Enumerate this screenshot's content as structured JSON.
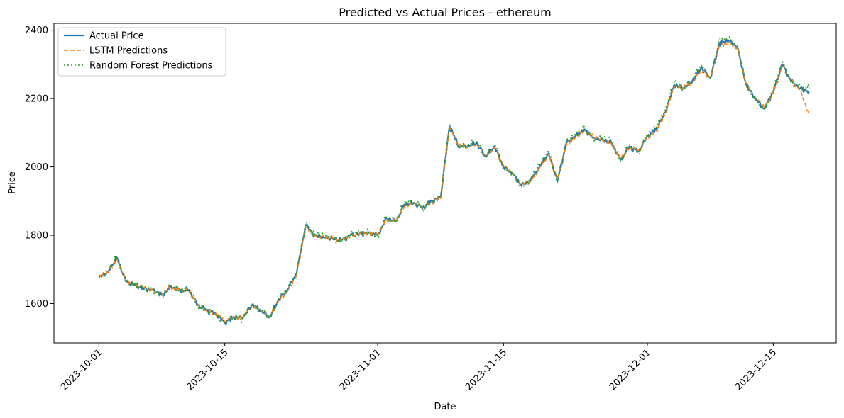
{
  "chart_data": {
    "type": "line",
    "title": "Predicted vs Actual Prices - ethereum",
    "xlabel": "Date",
    "ylabel": "Price",
    "xlim": [
      "2023-09-26",
      "2023-12-22"
    ],
    "ylim": [
      1485,
      2420
    ],
    "x_ticks": [
      "2023-10-01",
      "2023-10-15",
      "2023-11-01",
      "2023-11-15",
      "2023-12-01",
      "2023-12-15"
    ],
    "y_ticks": [
      1600,
      1800,
      2000,
      2200,
      2400
    ],
    "grid": false,
    "legend": "top-left",
    "x": [
      "2023-10-01",
      "2023-10-02",
      "2023-10-03",
      "2023-10-04",
      "2023-10-05",
      "2023-10-06",
      "2023-10-07",
      "2023-10-08",
      "2023-10-09",
      "2023-10-10",
      "2023-10-11",
      "2023-10-12",
      "2023-10-13",
      "2023-10-14",
      "2023-10-15",
      "2023-10-16",
      "2023-10-17",
      "2023-10-18",
      "2023-10-19",
      "2023-10-20",
      "2023-10-21",
      "2023-10-22",
      "2023-10-23",
      "2023-10-24",
      "2023-10-25",
      "2023-10-26",
      "2023-10-27",
      "2023-10-28",
      "2023-10-29",
      "2023-10-30",
      "2023-10-31",
      "2023-11-01",
      "2023-11-02",
      "2023-11-03",
      "2023-11-04",
      "2023-11-05",
      "2023-11-06",
      "2023-11-07",
      "2023-11-08",
      "2023-11-09",
      "2023-11-10",
      "2023-11-11",
      "2023-11-12",
      "2023-11-13",
      "2023-11-14",
      "2023-11-15",
      "2023-11-16",
      "2023-11-17",
      "2023-11-18",
      "2023-11-19",
      "2023-11-20",
      "2023-11-21",
      "2023-11-22",
      "2023-11-23",
      "2023-11-24",
      "2023-11-25",
      "2023-11-26",
      "2023-11-27",
      "2023-11-28",
      "2023-11-29",
      "2023-11-30",
      "2023-12-01",
      "2023-12-02",
      "2023-12-03",
      "2023-12-04",
      "2023-12-05",
      "2023-12-06",
      "2023-12-07",
      "2023-12-08",
      "2023-12-09",
      "2023-12-10",
      "2023-12-11",
      "2023-12-12",
      "2023-12-13",
      "2023-12-14",
      "2023-12-15",
      "2023-12-16",
      "2023-12-17",
      "2023-12-18",
      "2023-12-19"
    ],
    "series": [
      {
        "name": "Actual Price",
        "color": "#1f77b4",
        "style": "solid",
        "values": [
          1678,
          1692,
          1735,
          1665,
          1655,
          1645,
          1640,
          1625,
          1650,
          1638,
          1640,
          1595,
          1580,
          1570,
          1545,
          1560,
          1558,
          1595,
          1580,
          1560,
          1612,
          1640,
          1690,
          1830,
          1800,
          1795,
          1790,
          1785,
          1800,
          1805,
          1808,
          1800,
          1850,
          1840,
          1890,
          1895,
          1880,
          1900,
          1910,
          2120,
          2060,
          2060,
          2070,
          2030,
          2060,
          2000,
          1980,
          1945,
          1960,
          2000,
          2040,
          1960,
          2070,
          2090,
          2110,
          2085,
          2080,
          2070,
          2020,
          2060,
          2045,
          2090,
          2110,
          2160,
          2240,
          2230,
          2250,
          2290,
          2260,
          2360,
          2370,
          2350,
          2240,
          2200,
          2170,
          2220,
          2300,
          2250,
          2230,
          2220
        ]
      },
      {
        "name": "LSTM Predictions",
        "color": "#ff7f0e",
        "style": "dashed",
        "values": [
          1680,
          1690,
          1730,
          1668,
          1655,
          1646,
          1638,
          1628,
          1648,
          1640,
          1638,
          1598,
          1578,
          1572,
          1548,
          1558,
          1560,
          1592,
          1582,
          1562,
          1608,
          1636,
          1685,
          1825,
          1798,
          1794,
          1792,
          1786,
          1798,
          1804,
          1806,
          1802,
          1845,
          1842,
          1885,
          1893,
          1882,
          1898,
          1908,
          2115,
          2062,
          2058,
          2068,
          2034,
          2056,
          2004,
          1978,
          1948,
          1958,
          1996,
          2036,
          1964,
          2066,
          2088,
          2106,
          2087,
          2078,
          2068,
          2024,
          2056,
          2048,
          2086,
          2106,
          2156,
          2234,
          2232,
          2246,
          2284,
          2262,
          2352,
          2362,
          2348,
          2244,
          2204,
          2174,
          2216,
          2294,
          2254,
          2226,
          2150
        ]
      },
      {
        "name": "Random Forest Predictions",
        "color": "#2ca02c",
        "style": "dotted",
        "values": [
          1676,
          1694,
          1738,
          1662,
          1658,
          1642,
          1643,
          1622,
          1653,
          1635,
          1643,
          1592,
          1583,
          1567,
          1542,
          1563,
          1555,
          1598,
          1577,
          1557,
          1616,
          1643,
          1694,
          1836,
          1803,
          1797,
          1788,
          1783,
          1803,
          1808,
          1811,
          1797,
          1856,
          1838,
          1896,
          1898,
          1877,
          1903,
          1914,
          2126,
          2057,
          2063,
          2074,
          2026,
          2065,
          1995,
          1984,
          1940,
          1964,
          2004,
          2046,
          1955,
          2076,
          2094,
          2116,
          2081,
          2084,
          2074,
          2015,
          2065,
          2040,
          2096,
          2116,
          2166,
          2250,
          2226,
          2256,
          2298,
          2256,
          2370,
          2378,
          2354,
          2236,
          2196,
          2166,
          2226,
          2308,
          2246,
          2236,
          2230
        ]
      }
    ]
  }
}
